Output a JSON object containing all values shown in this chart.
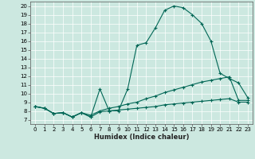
{
  "title": "",
  "xlabel": "Humidex (Indice chaleur)",
  "bg_color": "#cce8e0",
  "line_color": "#006655",
  "xlim": [
    -0.5,
    23.5
  ],
  "ylim": [
    6.5,
    20.5
  ],
  "xticks": [
    0,
    1,
    2,
    3,
    4,
    5,
    6,
    7,
    8,
    9,
    10,
    11,
    12,
    13,
    14,
    15,
    16,
    17,
    18,
    19,
    20,
    21,
    22,
    23
  ],
  "yticks": [
    7,
    8,
    9,
    10,
    11,
    12,
    13,
    14,
    15,
    16,
    17,
    18,
    19,
    20
  ],
  "line1_x": [
    0,
    1,
    2,
    3,
    4,
    5,
    6,
    7,
    8,
    9,
    10,
    11,
    12,
    13,
    14,
    15,
    16,
    17,
    18,
    19,
    20,
    21,
    22,
    23
  ],
  "line1_y": [
    8.5,
    8.3,
    7.7,
    7.8,
    7.3,
    7.8,
    7.3,
    10.5,
    8.0,
    8.0,
    10.5,
    15.5,
    15.8,
    17.5,
    19.5,
    20.0,
    19.8,
    19.0,
    18.0,
    16.0,
    12.3,
    11.7,
    11.2,
    9.5
  ],
  "line2_x": [
    0,
    1,
    2,
    3,
    4,
    5,
    6,
    7,
    8,
    9,
    10,
    11,
    12,
    13,
    14,
    15,
    16,
    17,
    18,
    19,
    20,
    21,
    22,
    23
  ],
  "line2_y": [
    8.5,
    8.3,
    7.7,
    7.8,
    7.3,
    7.8,
    7.5,
    8.0,
    8.3,
    8.5,
    8.8,
    9.0,
    9.4,
    9.7,
    10.1,
    10.4,
    10.7,
    11.0,
    11.3,
    11.5,
    11.7,
    11.9,
    9.2,
    9.2
  ],
  "line3_x": [
    0,
    1,
    2,
    3,
    4,
    5,
    6,
    7,
    8,
    9,
    10,
    11,
    12,
    13,
    14,
    15,
    16,
    17,
    18,
    19,
    20,
    21,
    22,
    23
  ],
  "line3_y": [
    8.5,
    8.3,
    7.7,
    7.8,
    7.3,
    7.8,
    7.3,
    7.9,
    8.0,
    8.1,
    8.2,
    8.3,
    8.4,
    8.5,
    8.7,
    8.8,
    8.9,
    9.0,
    9.1,
    9.2,
    9.3,
    9.4,
    9.0,
    9.0
  ]
}
